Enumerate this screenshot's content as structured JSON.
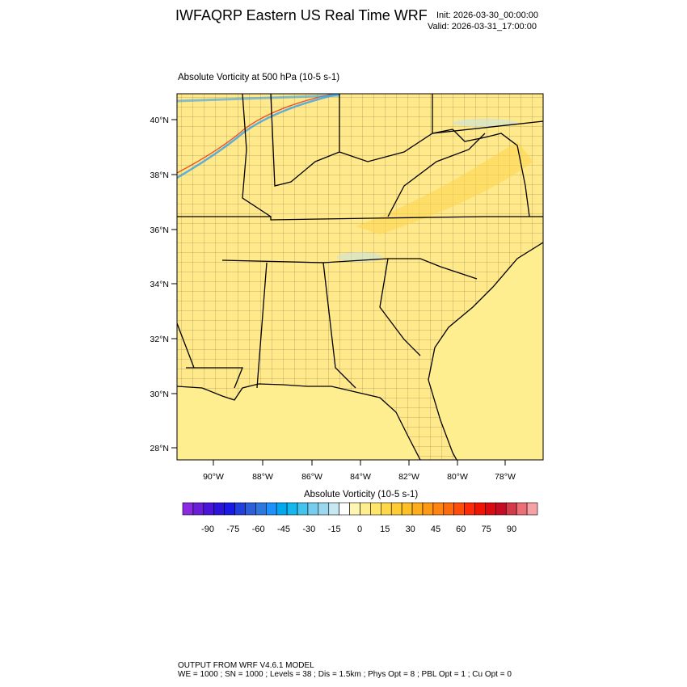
{
  "header": {
    "title": "IWFAQRP Eastern US Real Time WRF",
    "init": "Init: 2026-03-30_00:00:00",
    "valid": "Valid: 2026-03-31_17:00:00"
  },
  "plot": {
    "title": "Absolute Vorticity at 500 hPa   (10-5 s-1)",
    "lat_labels": [
      "40°N",
      "38°N",
      "36°N",
      "34°N",
      "32°N",
      "30°N",
      "28°N"
    ],
    "lon_labels": [
      "90°W",
      "88°W",
      "86°W",
      "84°W",
      "82°W",
      "80°W",
      "78°W"
    ],
    "colors": {
      "field_base": "#ffe98a",
      "field_light": "#fff3b0",
      "field_warm": "#ffd54a",
      "ocean_tint": "#ffee90",
      "negative_tint": "#bfe3f2"
    }
  },
  "colorbar": {
    "title": "Absolute Vorticity  (10-5 s-1)",
    "labels": [
      "-90",
      "-75",
      "-60",
      "-45",
      "-30",
      "-15",
      "0",
      "15",
      "30",
      "45",
      "60",
      "75",
      "90"
    ],
    "colors": [
      "#8a2be2",
      "#6a1ed8",
      "#4a14d9",
      "#2a14dc",
      "#1a1ae6",
      "#2040e0",
      "#2e5fd8",
      "#2f77e0",
      "#1e90ff",
      "#00a8f0",
      "#12b8ee",
      "#43c3ee",
      "#77cdee",
      "#9bd8ee",
      "#c6e8f3",
      "#ffffff",
      "#fff6b3",
      "#ffee8e",
      "#ffe56a",
      "#ffd84a",
      "#ffcc33",
      "#ffbf26",
      "#ffad1a",
      "#ff9914",
      "#ff8410",
      "#ff6a0d",
      "#ff4d0a",
      "#ff2a06",
      "#f01404",
      "#dc0a10",
      "#c40d25",
      "#d43a48",
      "#ec6f78",
      "#f6a1a6"
    ]
  },
  "footer": {
    "line1": "OUTPUT FROM WRF V4.6.1 MODEL",
    "line2": "WE = 1000 ; SN = 1000 ; Levels = 38 ; Dis = 1.5km ; Phys Opt = 8 ; PBL Opt = 1 ; Cu Opt = 0"
  }
}
